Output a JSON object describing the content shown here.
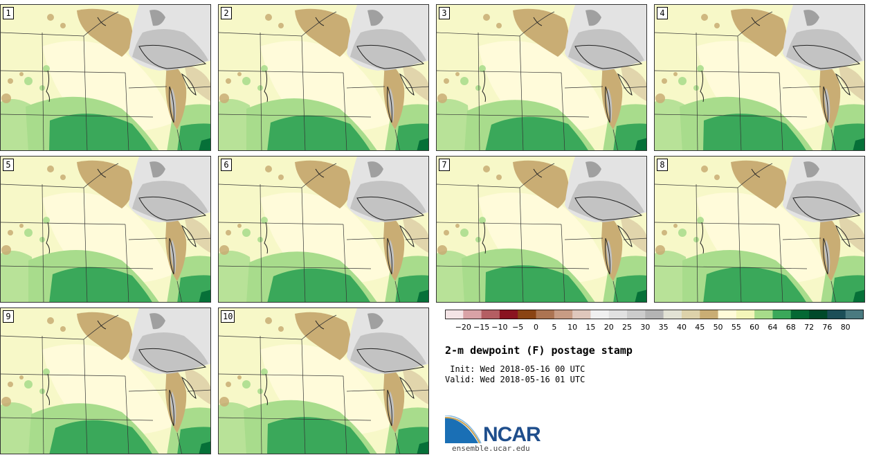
{
  "members": [
    "1",
    "2",
    "3",
    "4",
    "5",
    "6",
    "7",
    "8",
    "9",
    "10"
  ],
  "colorbar": {
    "ticks": [
      "−20",
      "−15",
      "−10",
      "−5",
      "0",
      "5",
      "10",
      "15",
      "20",
      "25",
      "30",
      "35",
      "40",
      "45",
      "50",
      "55",
      "60",
      "64",
      "68",
      "72",
      "76",
      "80"
    ],
    "colors": [
      "#f4e4e6",
      "#d9a2a6",
      "#b45e63",
      "#8a1420",
      "#8a4414",
      "#ac7452",
      "#c89c84",
      "#dfc7bc",
      "#f0f0f0",
      "#e1e1e1",
      "#cccccc",
      "#b4b4b4",
      "#e2e2d4",
      "#ddd2aa",
      "#c9ad74",
      "#fffbd9",
      "#f3f6b9",
      "#a7dc8a",
      "#3aa85a",
      "#046834",
      "#00492a",
      "#1b4e58",
      "#4a7a80"
    ]
  },
  "map_colors": {
    "base": "#f7f8c8",
    "pale": "#fffbdc",
    "light_green": "#a8dc8c",
    "green": "#3aa85a",
    "dark_green": "#067038",
    "tan": "#c9ad74",
    "light_tan": "#e1d5ac",
    "gray": "#c3c3c3",
    "light_gray": "#e3e3e3"
  },
  "title": "2-m dewpoint (F) postage stamp",
  "init": " Init: Wed 2018-05-16 00 UTC",
  "valid": "Valid: Wed 2018-05-16 01 UTC",
  "logo": {
    "name": "NCAR",
    "url": "ensemble.ucar.edu"
  }
}
